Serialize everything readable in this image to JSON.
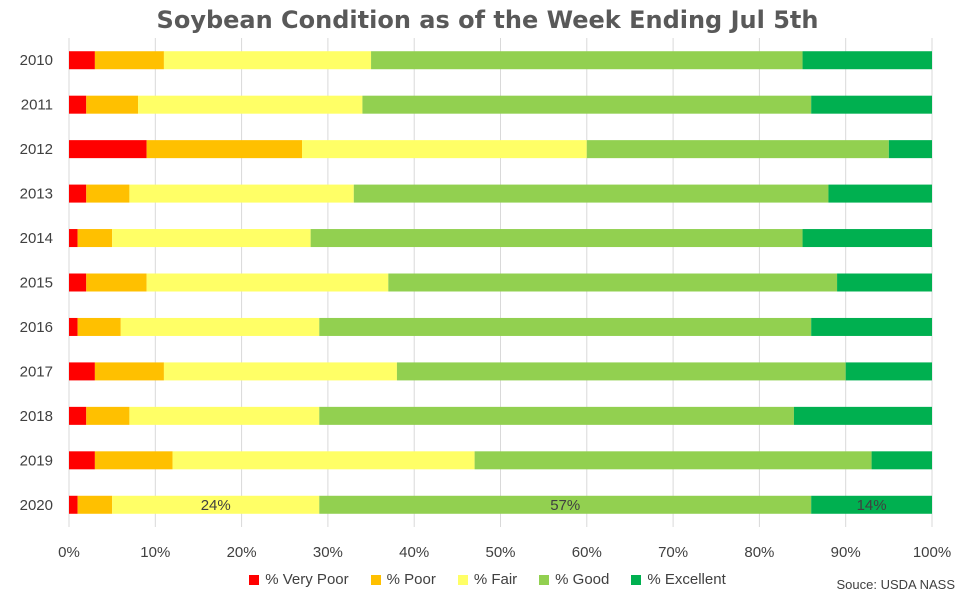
{
  "chart_data": {
    "type": "bar",
    "orientation": "horizontal",
    "stacked": true,
    "title": "Soybean Condition as of the Week Ending Jul 5th",
    "source": "Souce: USDA NASS",
    "categories": [
      "2010",
      "2011",
      "2012",
      "2013",
      "2014",
      "2015",
      "2016",
      "2017",
      "2018",
      "2019",
      "2020"
    ],
    "xlim": [
      0,
      100
    ],
    "x_ticks": [
      "0%",
      "10%",
      "20%",
      "30%",
      "40%",
      "50%",
      "60%",
      "70%",
      "80%",
      "90%",
      "100%"
    ],
    "legend_position": "bottom",
    "series": [
      {
        "name": "% Very Poor",
        "color": "#ff0000",
        "values": [
          3,
          2,
          9,
          2,
          1,
          2,
          1,
          3,
          2,
          3,
          1
        ]
      },
      {
        "name": "% Poor",
        "color": "#ffc000",
        "values": [
          8,
          6,
          18,
          5,
          4,
          7,
          5,
          8,
          5,
          9,
          4
        ]
      },
      {
        "name": "% Fair",
        "color": "#ffff66",
        "values": [
          24,
          26,
          33,
          26,
          23,
          28,
          23,
          27,
          22,
          35,
          24
        ]
      },
      {
        "name": "% Good",
        "color": "#92d050",
        "values": [
          50,
          52,
          35,
          55,
          57,
          52,
          57,
          52,
          55,
          46,
          57
        ]
      },
      {
        "name": "% Excellent",
        "color": "#00b050",
        "values": [
          15,
          14,
          5,
          12,
          15,
          11,
          14,
          10,
          16,
          7,
          14
        ]
      }
    ],
    "data_labels": [
      {
        "category": "2020",
        "series": "% Fair",
        "text": "24%"
      },
      {
        "category": "2020",
        "series": "% Good",
        "text": "57%"
      },
      {
        "category": "2020",
        "series": "% Excellent",
        "text": "14%"
      }
    ]
  }
}
